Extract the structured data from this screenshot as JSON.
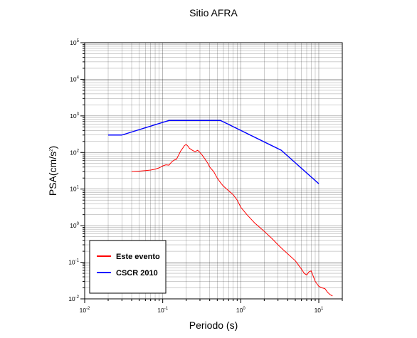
{
  "chart_data": {
    "type": "line",
    "title": "Sitio AFRA",
    "xlabel": "Periodo (s)",
    "ylabel": {
      "prefix": "PSA(cm/s",
      "exponent": "2",
      "suffix": ")"
    },
    "x_scale": "log",
    "y_scale": "log",
    "xlim": [
      0.01,
      20
    ],
    "ylim": [
      0.01,
      100000
    ],
    "x_ticks": [
      {
        "base": "10",
        "exp": "-2",
        "value": 0.01
      },
      {
        "base": "10",
        "exp": "-1",
        "value": 0.1
      },
      {
        "base": "10",
        "exp": "0",
        "value": 1
      },
      {
        "base": "10",
        "exp": "1",
        "value": 10
      }
    ],
    "y_ticks": [
      {
        "base": "10",
        "exp": "-2",
        "value": 0.01
      },
      {
        "base": "10",
        "exp": "-1",
        "value": 0.1
      },
      {
        "base": "10",
        "exp": "0",
        "value": 1
      },
      {
        "base": "10",
        "exp": "1",
        "value": 10
      },
      {
        "base": "10",
        "exp": "2",
        "value": 100
      },
      {
        "base": "10",
        "exp": "3",
        "value": 1000
      },
      {
        "base": "10",
        "exp": "4",
        "value": 10000
      },
      {
        "base": "10",
        "exp": "5",
        "value": 100000
      }
    ],
    "grid": true,
    "legend_position": "bottom-left",
    "series": [
      {
        "name": "Este evento",
        "color": "#ff0000",
        "x": [
          0.04,
          0.05,
          0.06,
          0.07,
          0.08,
          0.09,
          0.1,
          0.11,
          0.12,
          0.13,
          0.14,
          0.15,
          0.16,
          0.17,
          0.18,
          0.19,
          0.2,
          0.21,
          0.22,
          0.24,
          0.26,
          0.28,
          0.3,
          0.32,
          0.35,
          0.38,
          0.4,
          0.45,
          0.5,
          0.55,
          0.6,
          0.7,
          0.8,
          0.9,
          1.0,
          1.2,
          1.5,
          2.0,
          2.5,
          3.0,
          3.5,
          4.0,
          5.0,
          6.0,
          6.5,
          7.0,
          7.5,
          8.0,
          9.0,
          10.0,
          11.0,
          12.0,
          13.0,
          14.0,
          15.0
        ],
        "y": [
          30,
          31,
          32,
          33,
          35,
          38,
          43,
          46,
          45,
          55,
          62,
          65,
          85,
          110,
          130,
          155,
          165,
          150,
          130,
          115,
          105,
          115,
          100,
          85,
          65,
          50,
          40,
          30,
          20,
          15,
          12,
          9,
          7,
          5,
          3.2,
          2.0,
          1.2,
          0.7,
          0.45,
          0.3,
          0.22,
          0.17,
          0.11,
          0.065,
          0.05,
          0.045,
          0.055,
          0.058,
          0.03,
          0.022,
          0.02,
          0.019,
          0.015,
          0.013,
          0.012
        ]
      },
      {
        "name": "CSCR 2010",
        "color": "#0000ff",
        "x": [
          0.02,
          0.03,
          0.12,
          0.55,
          3.3,
          10.0
        ],
        "y": [
          300,
          300,
          750,
          750,
          115,
          14
        ]
      }
    ]
  }
}
